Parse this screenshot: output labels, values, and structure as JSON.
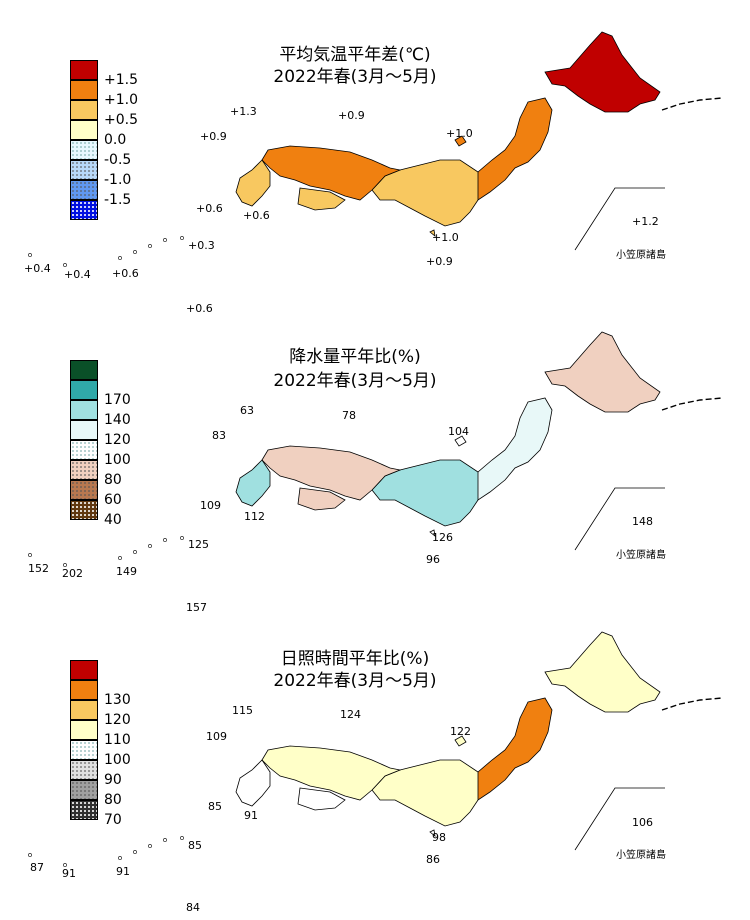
{
  "panels": [
    {
      "title_line1": "平均気温平年差(℃)",
      "title_line2": "2022年春(3月～5月)",
      "legend": [
        {
          "label": "+1.5",
          "color": "#c00000",
          "pattern": "solid"
        },
        {
          "label": "+1.0",
          "color": "#f08010",
          "pattern": "solid"
        },
        {
          "label": "+0.5",
          "color": "#f8c860",
          "pattern": "solid"
        },
        {
          "label": "0.0",
          "color": "#ffffc8",
          "pattern": "solid"
        },
        {
          "label": "-0.5",
          "color": "#e8f8ff",
          "pattern": "dots-light"
        },
        {
          "label": "-1.0",
          "color": "#b8d8f8",
          "pattern": "dots"
        },
        {
          "label": "-1.5",
          "color": "#6098f0",
          "pattern": "dots"
        },
        {
          "label": "",
          "color": "#0010e0",
          "pattern": "dots-white"
        }
      ],
      "station_labels": [
        "+1.3",
        "+0.9",
        "+0.9",
        "+1.0",
        "+0.6",
        "+0.6",
        "+1.2",
        "+1.0",
        "+0.9",
        "+0.3",
        "+0.4",
        "+0.4",
        "+0.6",
        "+0.6"
      ],
      "bonin": "小笠原諸島"
    },
    {
      "title_line1": "降水量平年比(%)",
      "title_line2": "2022年春(3月～5月)",
      "legend": [
        {
          "label": "",
          "color": "#0a5028",
          "pattern": "solid"
        },
        {
          "label": "170",
          "color": "#30a8a8",
          "pattern": "solid"
        },
        {
          "label": "140",
          "color": "#a0e0e0",
          "pattern": "solid"
        },
        {
          "label": "120",
          "color": "#e8f8f8",
          "pattern": "solid"
        },
        {
          "label": "100",
          "color": "#ffffff",
          "pattern": "dots-light"
        },
        {
          "label": "80",
          "color": "#f0d0c0",
          "pattern": "dots"
        },
        {
          "label": "60",
          "color": "#b87850",
          "pattern": "dots"
        },
        {
          "label": "40",
          "color": "#603810",
          "pattern": "dots-white"
        }
      ],
      "station_labels": [
        "63",
        "78",
        "83",
        "104",
        "109",
        "112",
        "148",
        "126",
        "96",
        "125",
        "152",
        "202",
        "149",
        "157"
      ],
      "bonin": "小笠原諸島"
    },
    {
      "title_line1": "日照時間平年比(%)",
      "title_line2": "2022年春(3月～5月)",
      "legend": [
        {
          "label": "",
          "color": "#c00000",
          "pattern": "solid"
        },
        {
          "label": "130",
          "color": "#f08010",
          "pattern": "solid"
        },
        {
          "label": "120",
          "color": "#f8c860",
          "pattern": "solid"
        },
        {
          "label": "110",
          "color": "#ffffc8",
          "pattern": "solid"
        },
        {
          "label": "100",
          "color": "#ffffff",
          "pattern": "dots-light"
        },
        {
          "label": "90",
          "color": "#e0e0e0",
          "pattern": "dots"
        },
        {
          "label": "80",
          "color": "#a0a0a0",
          "pattern": "dots"
        },
        {
          "label": "70",
          "color": "#303030",
          "pattern": "dots-white"
        }
      ],
      "station_labels": [
        "115",
        "124",
        "109",
        "122",
        "85",
        "91",
        "106",
        "98",
        "86",
        "85",
        "87",
        "91",
        "91",
        "84"
      ],
      "bonin": "小笠原諸島"
    }
  ]
}
